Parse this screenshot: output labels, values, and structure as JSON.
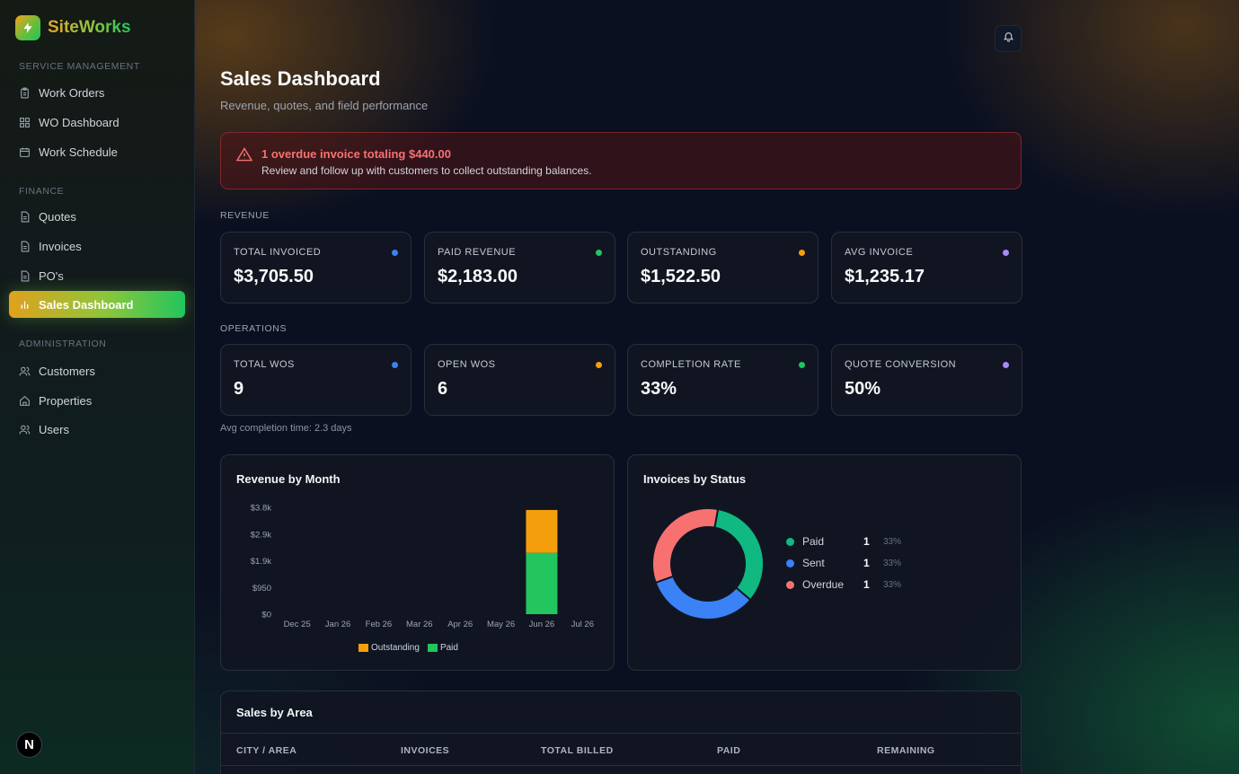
{
  "brand": {
    "name": "SiteWorks"
  },
  "sidebar": {
    "sections": [
      {
        "label": "SERVICE MANAGEMENT"
      },
      {
        "label": "FINANCE"
      },
      {
        "label": "ADMINISTRATION"
      }
    ],
    "items": [
      {
        "label": "Work Orders",
        "icon": "clipboard-icon"
      },
      {
        "label": "WO Dashboard",
        "icon": "grid-icon"
      },
      {
        "label": "Work Schedule",
        "icon": "calendar-icon"
      },
      {
        "label": "Quotes",
        "icon": "document-icon"
      },
      {
        "label": "Invoices",
        "icon": "document-icon"
      },
      {
        "label": "PO's",
        "icon": "document-icon"
      },
      {
        "label": "Sales Dashboard",
        "icon": "bar-chart-icon",
        "active": true
      },
      {
        "label": "Customers",
        "icon": "users-icon"
      },
      {
        "label": "Properties",
        "icon": "home-icon"
      },
      {
        "label": "Users",
        "icon": "users-icon"
      }
    ],
    "badge": "N"
  },
  "page": {
    "title": "Sales Dashboard",
    "subtitle": "Revenue, quotes, and field performance"
  },
  "alert": {
    "title": "1 overdue invoice totaling $440.00",
    "description": "Review and follow up with customers to collect outstanding balances.",
    "color": "#f87171"
  },
  "revenue": {
    "label": "REVENUE",
    "cards": [
      {
        "label": "TOTAL INVOICED",
        "value": "$3,705.50",
        "dot": "#3b82f6"
      },
      {
        "label": "PAID REVENUE",
        "value": "$2,183.00",
        "dot": "#22c55e"
      },
      {
        "label": "OUTSTANDING",
        "value": "$1,522.50",
        "dot": "#f59e0b"
      },
      {
        "label": "AVG INVOICE",
        "value": "$1,235.17",
        "dot": "#a78bfa"
      }
    ]
  },
  "operations": {
    "label": "OPERATIONS",
    "cards": [
      {
        "label": "TOTAL WOS",
        "value": "9",
        "dot": "#3b82f6"
      },
      {
        "label": "OPEN WOS",
        "value": "6",
        "dot": "#f59e0b"
      },
      {
        "label": "COMPLETION RATE",
        "value": "33%",
        "dot": "#22c55e"
      },
      {
        "label": "QUOTE CONVERSION",
        "value": "50%",
        "dot": "#a78bfa"
      }
    ],
    "note": "Avg completion time: 2.3 days"
  },
  "revenue_chart": {
    "title": "Revenue by Month",
    "legend": [
      {
        "label": "Outstanding",
        "color": "#f59e0b"
      },
      {
        "label": "Paid",
        "color": "#22c55e"
      }
    ]
  },
  "status_chart": {
    "title": "Invoices by Status",
    "items": [
      {
        "label": "Paid",
        "count": "1",
        "pct": "33%",
        "color": "#10b981"
      },
      {
        "label": "Sent",
        "count": "1",
        "pct": "33%",
        "color": "#3b82f6"
      },
      {
        "label": "Overdue",
        "count": "1",
        "pct": "33%",
        "color": "#f87171"
      }
    ]
  },
  "sales_by_area": {
    "title": "Sales by Area",
    "columns": [
      "CITY / AREA",
      "INVOICES",
      "TOTAL BILLED",
      "PAID",
      "REMAINING"
    ]
  },
  "chart_data": [
    {
      "type": "bar",
      "title": "Revenue by Month",
      "categories": [
        "Dec 25",
        "Jan 26",
        "Feb 26",
        "Mar 26",
        "Apr 26",
        "May 26",
        "Jun 26",
        "Jul 26"
      ],
      "series": [
        {
          "name": "Paid",
          "color": "#22c55e",
          "values": [
            0,
            0,
            0,
            0,
            0,
            0,
            2183,
            0
          ]
        },
        {
          "name": "Outstanding",
          "color": "#f59e0b",
          "values": [
            0,
            0,
            0,
            0,
            0,
            0,
            1522.5,
            0
          ]
        }
      ],
      "stacked": true,
      "yticks": [
        "$0",
        "$950",
        "$1.9k",
        "$2.9k",
        "$3.8k"
      ],
      "ylim": [
        0,
        3800
      ],
      "legend": "bottom"
    },
    {
      "type": "pie",
      "title": "Invoices by Status",
      "donut": true,
      "categories": [
        "Paid",
        "Sent",
        "Overdue"
      ],
      "values": [
        1,
        1,
        1
      ],
      "colors": [
        "#10b981",
        "#3b82f6",
        "#f87171"
      ]
    }
  ]
}
